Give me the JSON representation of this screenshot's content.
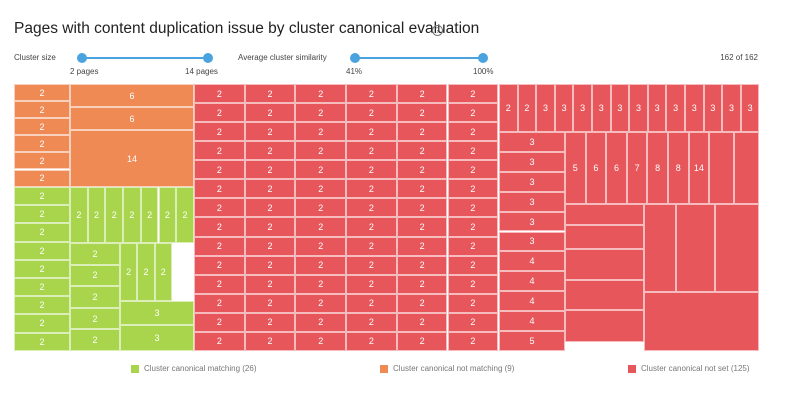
{
  "header": {
    "title": "Pages with content duplication issue by cluster canonical evaluation",
    "help_icon": "?"
  },
  "filters": {
    "cluster_size": {
      "label": "Cluster size",
      "min_label": "2 pages",
      "max_label": "14 pages"
    },
    "similarity": {
      "label": "Average cluster similarity",
      "min_label": "41%",
      "max_label": "100%"
    },
    "counter": "162 of 162"
  },
  "colors": {
    "matching": "#a8d54b",
    "not_matching": "#ef8a55",
    "not_set": "#e6565b"
  },
  "legend": [
    {
      "label": "Cluster canonical matching (26)",
      "color": "#a8d54b"
    },
    {
      "label": "Cluster canonical not matching (9)",
      "color": "#ef8a55"
    },
    {
      "label": "Cluster canonical not set (125)",
      "color": "#e6565b"
    }
  ],
  "chart_data": {
    "type": "treemap",
    "title": "Pages with content duplication issue by cluster canonical evaluation",
    "groups": [
      {
        "name": "Cluster canonical matching (26)",
        "values": [
          2,
          2,
          2,
          2,
          2,
          2,
          2,
          2,
          2,
          2,
          2,
          2,
          2,
          2,
          2,
          2,
          2,
          2,
          2,
          2,
          2,
          2,
          2,
          2,
          3,
          3
        ]
      },
      {
        "name": "Cluster canonical not matching (9)",
        "values": [
          2,
          2,
          2,
          2,
          2,
          2,
          6,
          6,
          14
        ]
      },
      {
        "name": "Cluster canonical not set (125)",
        "values": [
          2,
          2,
          2,
          2,
          2,
          2,
          2,
          2,
          2,
          2,
          2,
          2,
          2,
          2,
          2,
          2,
          2,
          2,
          2,
          2,
          2,
          2,
          2,
          2,
          2,
          2,
          2,
          2,
          2,
          2,
          2,
          2,
          2,
          2,
          2,
          2,
          2,
          2,
          2,
          2,
          2,
          2,
          2,
          2,
          2,
          2,
          2,
          2,
          2,
          2,
          2,
          2,
          2,
          2,
          2,
          2,
          2,
          2,
          2,
          2,
          2,
          2,
          2,
          2,
          2,
          2,
          2,
          2,
          2,
          2,
          2,
          2,
          2,
          2,
          2,
          2,
          2,
          2,
          2,
          2,
          2,
          2,
          2,
          2,
          2,
          2,
          3,
          3,
          3,
          3,
          3,
          3,
          3,
          3,
          3,
          3,
          3,
          3,
          3,
          3,
          3,
          3,
          3,
          3,
          4,
          4,
          4,
          4,
          5,
          5,
          6,
          6,
          7,
          8,
          8,
          14
        ]
      }
    ]
  }
}
